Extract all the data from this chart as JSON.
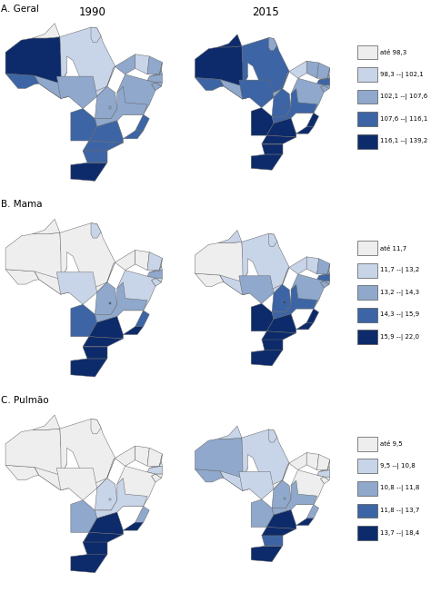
{
  "title_1990": "1990",
  "title_2015": "2015",
  "panel_A": "A. Geral",
  "panel_B": "B. Mama",
  "panel_C": "C. Pulmão",
  "legend_A": {
    "labels": [
      "até 98,3",
      "98,3 --| 102,1",
      "102,1 --| 107,6",
      "107,6 --| 116,1",
      "116,1 --| 139,2"
    ],
    "colors": [
      "#eeeeee",
      "#c8d4e8",
      "#8fa8cc",
      "#3d65a5",
      "#0d2b6b"
    ]
  },
  "legend_B": {
    "labels": [
      "até 11,7",
      "11,7 --| 13,2",
      "13,2 --| 14,3",
      "14,3 --| 15,9",
      "15,9 --| 22,0"
    ],
    "colors": [
      "#eeeeee",
      "#c8d4e8",
      "#8fa8cc",
      "#3d65a5",
      "#0d2b6b"
    ]
  },
  "legend_C": {
    "labels": [
      "até 9,5",
      "9,5 --| 10,8",
      "10,8 --| 11,8",
      "11,8 --| 13,7",
      "13,7 --| 18,4"
    ],
    "colors": [
      "#eeeeee",
      "#c8d4e8",
      "#8fa8cc",
      "#3d65a5",
      "#0d2b6b"
    ]
  },
  "bg_color": "#ffffff",
  "border_color": "#777777",
  "border_lw": 0.4,
  "legend_fontsize": 5.0,
  "label_fontsize": 7.5,
  "title_fontsize": 8.5,
  "geral_1990": {
    "AM": 4,
    "PA": 1,
    "RR": 0,
    "AP": 1,
    "TO": 1,
    "AC": 3,
    "RO": 2,
    "MA": 2,
    "PI": 1,
    "CE": 2,
    "RN": 2,
    "PB": 2,
    "PE": 2,
    "AL": 2,
    "SE": 2,
    "BA": 2,
    "MT": 2,
    "GO": 2,
    "MS": 3,
    "DF": 2,
    "MG": 2,
    "ES": 3,
    "RJ": 3,
    "SP": 3,
    "PR": 3,
    "SC": 3,
    "RS": 4
  },
  "geral_2015": {
    "AM": 4,
    "PA": 3,
    "RR": 4,
    "AP": 2,
    "TO": 2,
    "AC": 3,
    "RO": 2,
    "MA": 1,
    "PI": 2,
    "CE": 2,
    "RN": 2,
    "PB": 2,
    "PE": 3,
    "AL": 2,
    "SE": 2,
    "BA": 2,
    "MT": 3,
    "GO": 3,
    "MS": 4,
    "DF": 3,
    "MG": 3,
    "ES": 4,
    "RJ": 4,
    "SP": 4,
    "PR": 4,
    "SC": 4,
    "RS": 4
  },
  "mama_1990": {
    "AM": 0,
    "PA": 0,
    "RR": 0,
    "AP": 1,
    "TO": 0,
    "AC": 0,
    "RO": 0,
    "MA": 0,
    "PI": 0,
    "CE": 1,
    "RN": 1,
    "PB": 1,
    "PE": 2,
    "AL": 1,
    "SE": 1,
    "BA": 1,
    "MT": 1,
    "GO": 2,
    "MS": 3,
    "DF": 3,
    "MG": 2,
    "ES": 3,
    "RJ": 4,
    "SP": 4,
    "PR": 4,
    "SC": 4,
    "RS": 4
  },
  "mama_2015": {
    "AM": 0,
    "PA": 1,
    "RR": 1,
    "AP": 1,
    "TO": 1,
    "AC": 0,
    "RO": 1,
    "MA": 1,
    "PI": 1,
    "CE": 2,
    "RN": 2,
    "PB": 2,
    "PE": 3,
    "AL": 2,
    "SE": 2,
    "BA": 2,
    "MT": 2,
    "GO": 3,
    "MS": 4,
    "DF": 4,
    "MG": 3,
    "ES": 4,
    "RJ": 4,
    "SP": 4,
    "PR": 4,
    "SC": 4,
    "RS": 4
  },
  "pulmao_1990": {
    "AM": 0,
    "PA": 0,
    "RR": 0,
    "AP": 0,
    "TO": 0,
    "AC": 0,
    "RO": 0,
    "MA": 0,
    "PI": 0,
    "CE": 0,
    "RN": 0,
    "PB": 0,
    "PE": 1,
    "AL": 0,
    "SE": 0,
    "BA": 0,
    "MT": 0,
    "GO": 1,
    "MS": 2,
    "DF": 1,
    "MG": 1,
    "ES": 2,
    "RJ": 4,
    "SP": 4,
    "PR": 4,
    "SC": 4,
    "RS": 4
  },
  "pulmao_2015": {
    "AM": 2,
    "PA": 1,
    "RR": 1,
    "AP": 1,
    "TO": 0,
    "AC": 2,
    "RO": 1,
    "MA": 0,
    "PI": 0,
    "CE": 0,
    "RN": 0,
    "PB": 0,
    "PE": 1,
    "AL": 0,
    "SE": 0,
    "BA": 0,
    "MT": 1,
    "GO": 2,
    "MS": 2,
    "DF": 2,
    "MG": 2,
    "ES": 2,
    "RJ": 4,
    "SP": 4,
    "PR": 4,
    "SC": 3,
    "RS": 4
  }
}
